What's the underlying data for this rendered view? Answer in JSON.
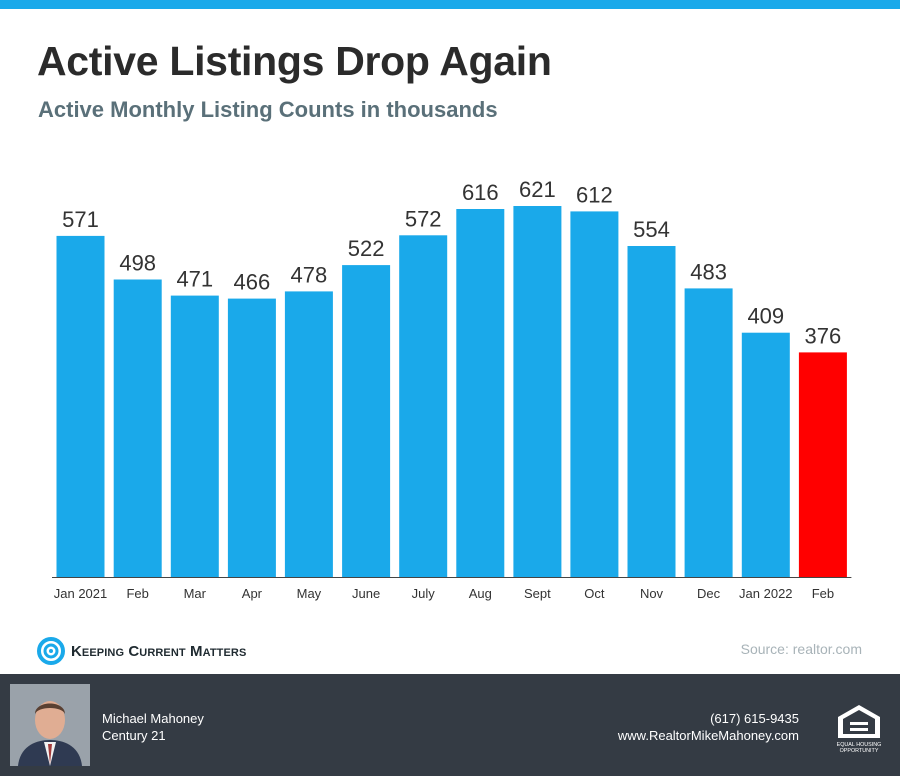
{
  "title": "Active Listings Drop Again",
  "subtitle": "Active Monthly Listing Counts in thousands",
  "chart_data": {
    "type": "bar",
    "title": "Active Listings Drop Again",
    "subtitle": "Active Monthly Listing Counts in thousands",
    "categories": [
      "Jan 2021",
      "Feb",
      "Mar",
      "Apr",
      "May",
      "June",
      "July",
      "Aug",
      "Sept",
      "Oct",
      "Nov",
      "Dec",
      "Jan 2022",
      "Feb"
    ],
    "values": [
      571,
      498,
      471,
      466,
      478,
      522,
      572,
      616,
      621,
      612,
      554,
      483,
      409,
      376
    ],
    "highlight_index": 13,
    "colors": {
      "bar": "#1aa9ea",
      "highlight": "#ff0000"
    },
    "ylim": [
      0,
      621
    ],
    "grid": false,
    "legend": "none",
    "data_labels": true
  },
  "brand": {
    "name": "Keeping Current Matters",
    "icon": "kcm-swirl-icon",
    "color": "#1aa9ea"
  },
  "source": "Source: realtor.com",
  "footer": {
    "name": "Michael Mahoney",
    "company": "Century 21",
    "phone": "(617) 615-9435",
    "website": "www.RealtorMikeMahoney.com",
    "eho_line1": "EQUAL HOUSING",
    "eho_line2": "OPPORTUNITY"
  }
}
